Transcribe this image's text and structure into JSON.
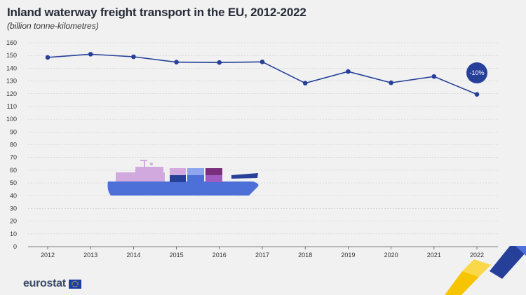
{
  "header": {
    "title": "Inland waterway freight transport in the EU, 2012-2022",
    "subtitle": "(billion tonne-kilometres)"
  },
  "footer": {
    "logo_text": "eurostat",
    "flag_icon": "eu-flag-icon"
  },
  "colors": {
    "line": "#26409a",
    "badge": "#26409a",
    "grid": "#c8c8c8",
    "ship_hull": "#4d6fd8",
    "ship_cabin": "#d2a9df"
  },
  "chart_data": {
    "type": "line",
    "title": "Inland waterway freight transport in the EU, 2012-2022",
    "subtitle": "(billion tonne-kilometres)",
    "x": [
      "2012",
      "2013",
      "2014",
      "2015",
      "2016",
      "2017",
      "2018",
      "2019",
      "2020",
      "2021",
      "2022"
    ],
    "series": [
      {
        "values": [
          148.5,
          151,
          149,
          144.8,
          144.5,
          145,
          128.3,
          137.4,
          128.6,
          133.5,
          119.5
        ]
      }
    ],
    "yticks": [
      0,
      10,
      20,
      30,
      40,
      50,
      60,
      70,
      80,
      90,
      100,
      110,
      120,
      130,
      140,
      150,
      160
    ],
    "ylim": [
      0,
      160
    ],
    "grid": true,
    "annotation": {
      "text": "-10%",
      "x": "2022"
    }
  }
}
